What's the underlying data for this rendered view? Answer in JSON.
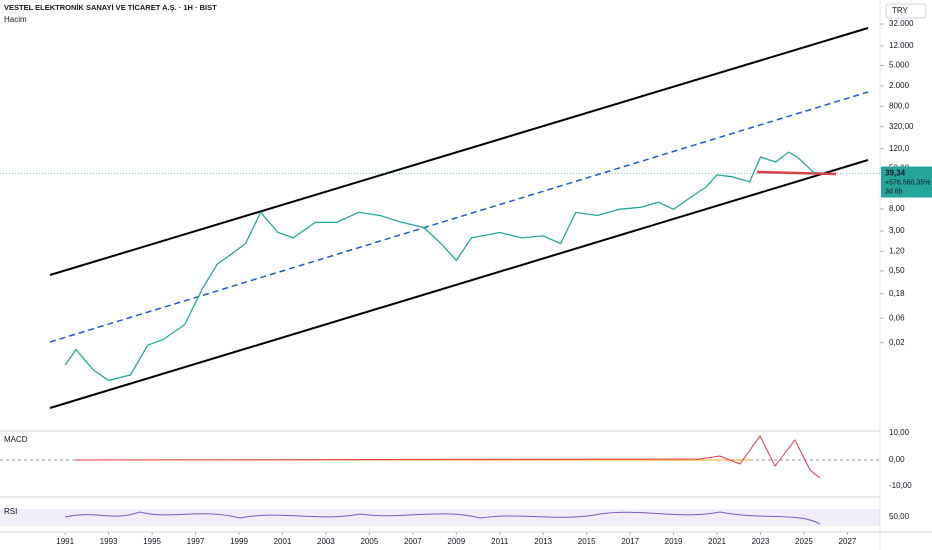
{
  "header": {
    "title": "VESTEL ELEKTRONİK SANAYİ VE TİCARET A.Ş. · 1H · BIST",
    "subtitle": "Hacim",
    "currency": "TRY"
  },
  "chart_data": {
    "type": "line",
    "log_scale": true,
    "color": "#26a69a",
    "x": [
      1991.0,
      1991.5,
      1992.3,
      1993.0,
      1994.0,
      1994.8,
      1995.5,
      1996.5,
      1997.3,
      1998.0,
      1998.7,
      1999.3,
      2000.0,
      2000.8,
      2001.5,
      2002.5,
      2003.5,
      2004.5,
      2005.5,
      2006.5,
      2007.5,
      2008.3,
      2009.0,
      2009.7,
      2011.0,
      2012.0,
      2013.0,
      2013.8,
      2014.5,
      2015.5,
      2016.5,
      2017.5,
      2018.3,
      2019.0,
      2019.8,
      2020.5,
      2021.0,
      2021.7,
      2022.5,
      2023.0,
      2023.7,
      2024.3,
      2024.7,
      2025.2,
      2025.5
    ],
    "values": [
      0.0074,
      0.0146,
      0.0059,
      0.0037,
      0.0047,
      0.018,
      0.023,
      0.045,
      0.22,
      0.68,
      1.1,
      1.7,
      6.9,
      2.8,
      2.2,
      4.4,
      4.4,
      6.9,
      6.0,
      4.4,
      3.5,
      1.7,
      0.8,
      2.2,
      2.8,
      2.2,
      2.4,
      1.7,
      6.9,
      6.0,
      7.9,
      8.7,
      10.9,
      7.9,
      13.7,
      21.6,
      37,
      34,
      27,
      82,
      66,
      103,
      82,
      52,
      39.34
    ],
    "xlim": [
      1988,
      2028.5
    ],
    "xticks": [
      1991,
      1993,
      1995,
      1997,
      1999,
      2001,
      2003,
      2005,
      2007,
      2009,
      2011,
      2013,
      2015,
      2017,
      2019,
      2021,
      2023,
      2025,
      2027
    ],
    "ylim": [
      0.0004,
      94000
    ],
    "yticks": [
      {
        "value": 32000,
        "label": "32.000"
      },
      {
        "value": 12000,
        "label": "12.000"
      },
      {
        "value": 5000,
        "label": "5.000"
      },
      {
        "value": 2000,
        "label": "2.000"
      },
      {
        "value": 800,
        "label": "800,0"
      },
      {
        "value": 320,
        "label": "320,00"
      },
      {
        "value": 120,
        "label": "120,0"
      },
      {
        "value": 50,
        "label": "50,00"
      },
      {
        "value": 8,
        "label": "8,00"
      },
      {
        "value": 3,
        "label": "3,00"
      },
      {
        "value": 1.2,
        "label": "1,20"
      },
      {
        "value": 0.5,
        "label": "0,50"
      },
      {
        "value": 0.18,
        "label": "0,18"
      },
      {
        "value": 0.06,
        "label": "0,06"
      },
      {
        "value": 0.02,
        "label": "0,02"
      }
    ],
    "last_label": "39,34",
    "change_label": "+576.560,35%",
    "countdown": "3d 6h"
  },
  "macd": {
    "title": "MACD",
    "ticks": [
      "10,00",
      "0,00",
      "-10,00"
    ]
  },
  "rsi": {
    "title": "RSI",
    "ticks": [
      "50,00"
    ]
  }
}
